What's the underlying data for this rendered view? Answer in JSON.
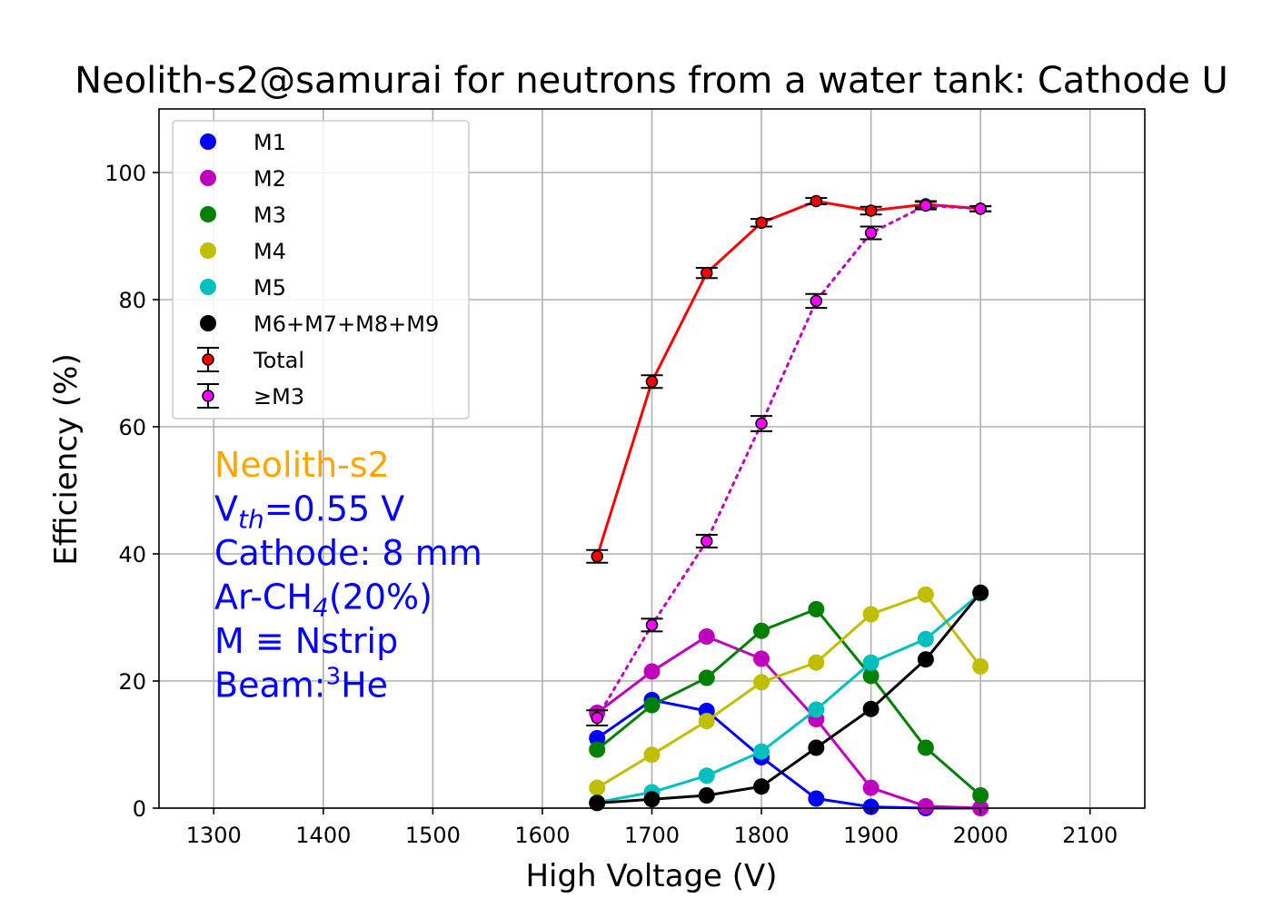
{
  "chart_data": {
    "type": "line",
    "title": "Neolith-s2@samurai for neutrons from a water tank: Cathode U",
    "xlabel": "High Voltage (V)",
    "ylabel": "Efficiency (%)",
    "xlim": [
      1250,
      2150
    ],
    "ylim": [
      0,
      110
    ],
    "xticks": [
      1300,
      1400,
      1500,
      1600,
      1700,
      1800,
      1900,
      2000,
      2100
    ],
    "yticks": [
      0,
      20,
      40,
      60,
      80,
      100
    ],
    "grid": true,
    "legend_position": "top-left",
    "x": [
      1650,
      1700,
      1750,
      1800,
      1850,
      1900,
      1950,
      2000
    ],
    "series": [
      {
        "name": "M1",
        "color": "#0000ff",
        "style": "solid",
        "values": [
          11.0,
          17.0,
          15.3,
          8.0,
          1.5,
          0.2,
          0.0,
          0.0
        ]
      },
      {
        "name": "M2",
        "color": "#bf00bf",
        "style": "solid",
        "values": [
          15.0,
          21.5,
          27.0,
          23.5,
          14.0,
          3.2,
          0.3,
          0.0
        ]
      },
      {
        "name": "M3",
        "color": "#008000",
        "style": "solid",
        "values": [
          9.2,
          16.2,
          20.5,
          27.9,
          31.3,
          20.8,
          9.5,
          2.0
        ]
      },
      {
        "name": "M4",
        "color": "#bfbf00",
        "style": "solid",
        "values": [
          3.2,
          8.4,
          13.7,
          19.8,
          22.9,
          30.5,
          33.6,
          22.3
        ]
      },
      {
        "name": "M5",
        "color": "#00bfbf",
        "style": "solid",
        "values": [
          0.9,
          2.5,
          5.1,
          8.9,
          15.5,
          22.9,
          26.6,
          33.8
        ]
      },
      {
        "name": "M6+M7+M8+M9",
        "color": "#000000",
        "style": "solid",
        "values": [
          0.8,
          1.4,
          2.0,
          3.4,
          9.5,
          15.6,
          23.4,
          33.9
        ]
      },
      {
        "name": "Total",
        "color": "#ff0000",
        "style": "solid",
        "errorbar": true,
        "values": [
          39.6,
          67.1,
          84.2,
          92.1,
          95.5,
          94.0,
          95.0,
          94.3
        ],
        "errors": [
          1.0,
          1.0,
          0.8,
          0.6,
          0.5,
          0.6,
          0.5,
          0.4
        ]
      },
      {
        "name": "≥M3",
        "color": "#ff00ff",
        "line_color": "#bf00bf",
        "style": "dotted",
        "errorbar": true,
        "values": [
          14.2,
          28.8,
          42.0,
          60.5,
          79.8,
          90.5,
          94.8,
          94.3
        ],
        "errors": [
          1.2,
          1.0,
          1.0,
          1.2,
          1.1,
          1.0,
          0.6,
          0.4
        ]
      }
    ],
    "annotations": [
      {
        "text": "Neolith-s2",
        "color": "#ffa500"
      },
      {
        "text": "V",
        "sub": "th",
        "text_after": "=0.55 V",
        "color": "#0000ff"
      },
      {
        "text": "Cathode: 8 mm",
        "color": "#0000ff"
      },
      {
        "text": "Ar-CH",
        "sub": "4",
        "text_after": "(20%)",
        "color": "#0000ff"
      },
      {
        "text": "M ≡ Nstrip",
        "color": "#0000ff"
      },
      {
        "text": "Beam:",
        "sup": "3",
        "text_after": "He",
        "color": "#0000ff"
      }
    ]
  }
}
